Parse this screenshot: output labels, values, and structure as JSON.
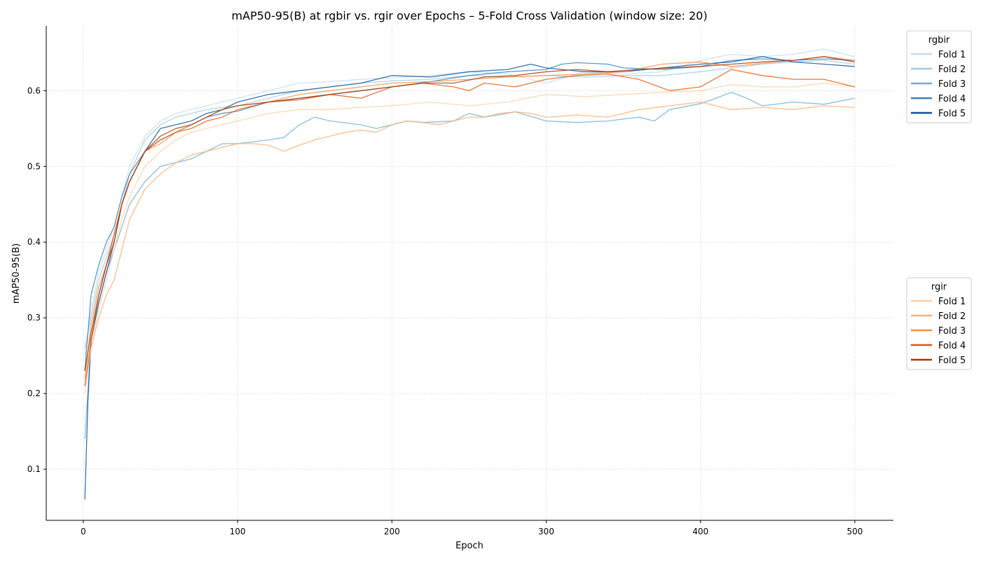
{
  "chart_data": {
    "type": "line",
    "title": "mAP50-95(B) at rgbir vs. rgir over Epochs – 5-Fold Cross Validation (window size: 20)",
    "xlabel": "Epoch",
    "ylabel": "mAP50-95(B)",
    "xlim": [
      -24,
      525
    ],
    "ylim": [
      0.0325,
      0.6855
    ],
    "xticks": [
      0,
      100,
      200,
      300,
      400,
      500
    ],
    "yticks": [
      0.1,
      0.2,
      0.3,
      0.4,
      0.5,
      0.6
    ],
    "xtick_labels": [
      "0",
      "100",
      "200",
      "300",
      "400",
      "500"
    ],
    "ytick_labels": [
      "0.1",
      "0.2",
      "0.3",
      "0.4",
      "0.5",
      "0.6"
    ],
    "grid": true,
    "legends": [
      {
        "title": "rgbir",
        "placement": "upper right, outside plot",
        "entries": [
          "Fold 1",
          "Fold 2",
          "Fold 3",
          "Fold 4",
          "Fold 5"
        ],
        "colors": [
          "#c6dbef",
          "#9ecae1",
          "#6baed6",
          "#3182bd",
          "#08519c"
        ]
      },
      {
        "title": "rgir",
        "placement": "center right, outside plot",
        "entries": [
          "Fold 1",
          "Fold 2",
          "Fold 3",
          "Fold 4",
          "Fold 5"
        ],
        "colors": [
          "#fdd0a2",
          "#fdae6b",
          "#fd8d3c",
          "#e6550d",
          "#a63603"
        ]
      }
    ],
    "series": [
      {
        "group": "rgbir",
        "name": "Fold 1",
        "color": "#c6dbef",
        "x": [
          1,
          5,
          10,
          15,
          20,
          25,
          30,
          40,
          50,
          60,
          70,
          80,
          90,
          100,
          120,
          140,
          160,
          180,
          200,
          225,
          250,
          275,
          300,
          325,
          350,
          375,
          400,
          420,
          440,
          460,
          480,
          500
        ],
        "y": [
          0.25,
          0.31,
          0.36,
          0.39,
          0.42,
          0.46,
          0.5,
          0.54,
          0.56,
          0.57,
          0.575,
          0.58,
          0.585,
          0.59,
          0.6,
          0.61,
          0.612,
          0.615,
          0.617,
          0.62,
          0.625,
          0.622,
          0.61,
          0.625,
          0.622,
          0.625,
          0.64,
          0.648,
          0.645,
          0.648,
          0.655,
          0.645
        ]
      },
      {
        "group": "rgbir",
        "name": "Fold 2",
        "color": "#9ecae1",
        "x": [
          1,
          5,
          10,
          15,
          20,
          25,
          30,
          40,
          50,
          60,
          70,
          80,
          90,
          100,
          120,
          140,
          160,
          180,
          200,
          225,
          250,
          275,
          300,
          325,
          350,
          375,
          400,
          420,
          440,
          460,
          480,
          500
        ],
        "y": [
          0.26,
          0.3,
          0.35,
          0.38,
          0.41,
          0.45,
          0.49,
          0.535,
          0.555,
          0.565,
          0.57,
          0.575,
          0.578,
          0.58,
          0.59,
          0.6,
          0.605,
          0.61,
          0.613,
          0.615,
          0.62,
          0.618,
          0.62,
          0.618,
          0.62,
          0.62,
          0.625,
          0.63,
          0.635,
          0.638,
          0.64,
          0.635
        ]
      },
      {
        "group": "rgbir",
        "name": "Fold 3",
        "color": "#6baed6",
        "x": [
          1,
          5,
          10,
          15,
          20,
          25,
          30,
          40,
          50,
          60,
          70,
          80,
          90,
          100,
          120,
          130,
          140,
          150,
          160,
          180,
          190,
          200,
          210,
          220,
          240,
          250,
          260,
          280,
          300,
          320,
          340,
          360,
          370,
          380,
          400,
          410,
          420,
          430,
          440,
          460,
          480,
          500
        ],
        "y": [
          0.14,
          0.27,
          0.32,
          0.36,
          0.39,
          0.42,
          0.45,
          0.48,
          0.5,
          0.505,
          0.51,
          0.52,
          0.53,
          0.53,
          0.535,
          0.538,
          0.555,
          0.565,
          0.56,
          0.555,
          0.55,
          0.555,
          0.56,
          0.558,
          0.56,
          0.57,
          0.565,
          0.572,
          0.56,
          0.558,
          0.56,
          0.565,
          0.56,
          0.575,
          0.583,
          0.59,
          0.598,
          0.59,
          0.58,
          0.585,
          0.582,
          0.59
        ]
      },
      {
        "group": "rgbir",
        "name": "Fold 4",
        "color": "#3182bd",
        "x": [
          1,
          5,
          10,
          15,
          20,
          25,
          30,
          40,
          50,
          60,
          70,
          80,
          90,
          100,
          120,
          140,
          160,
          180,
          200,
          225,
          250,
          275,
          300,
          310,
          320,
          340,
          350,
          375,
          400,
          420,
          440,
          460,
          480,
          500
        ],
        "y": [
          0.23,
          0.33,
          0.37,
          0.4,
          0.42,
          0.46,
          0.49,
          0.52,
          0.535,
          0.545,
          0.555,
          0.565,
          0.57,
          0.573,
          0.585,
          0.59,
          0.595,
          0.6,
          0.605,
          0.612,
          0.62,
          0.625,
          0.628,
          0.635,
          0.637,
          0.635,
          0.63,
          0.628,
          0.632,
          0.64,
          0.642,
          0.64,
          0.642,
          0.64
        ]
      },
      {
        "group": "rgbir",
        "name": "Fold 5",
        "color": "#08519c",
        "x": [
          1,
          3,
          5,
          10,
          15,
          20,
          25,
          30,
          40,
          50,
          60,
          70,
          80,
          90,
          100,
          120,
          140,
          160,
          180,
          200,
          225,
          250,
          275,
          290,
          300,
          325,
          350,
          375,
          400,
          420,
          440,
          460,
          480,
          500
        ],
        "y": [
          0.06,
          0.19,
          0.27,
          0.32,
          0.36,
          0.4,
          0.45,
          0.48,
          0.52,
          0.55,
          0.555,
          0.56,
          0.57,
          0.575,
          0.585,
          0.595,
          0.6,
          0.605,
          0.61,
          0.62,
          0.618,
          0.625,
          0.628,
          0.635,
          0.63,
          0.625,
          0.625,
          0.63,
          0.635,
          0.638,
          0.645,
          0.638,
          0.635,
          0.632
        ]
      },
      {
        "group": "rgir",
        "name": "Fold 1",
        "color": "#fdd0a2",
        "x": [
          1,
          5,
          10,
          15,
          20,
          25,
          30,
          40,
          50,
          60,
          70,
          80,
          90,
          100,
          120,
          140,
          160,
          180,
          200,
          225,
          250,
          275,
          300,
          325,
          350,
          375,
          400,
          420,
          440,
          460,
          480,
          500
        ],
        "y": [
          0.2,
          0.26,
          0.31,
          0.35,
          0.39,
          0.43,
          0.46,
          0.5,
          0.52,
          0.535,
          0.545,
          0.55,
          0.555,
          0.56,
          0.57,
          0.575,
          0.575,
          0.578,
          0.58,
          0.585,
          0.58,
          0.585,
          0.595,
          0.592,
          0.595,
          0.598,
          0.6,
          0.608,
          0.605,
          0.605,
          0.61,
          0.605
        ]
      },
      {
        "group": "rgir",
        "name": "Fold 2",
        "color": "#fdae6b",
        "x": [
          1,
          5,
          10,
          15,
          20,
          25,
          30,
          40,
          50,
          60,
          70,
          80,
          90,
          100,
          110,
          120,
          130,
          140,
          150,
          160,
          170,
          180,
          190,
          200,
          210,
          220,
          230,
          240,
          250,
          260,
          270,
          280,
          290,
          300,
          320,
          340,
          350,
          360,
          380,
          400,
          420,
          440,
          460,
          480,
          500
        ],
        "y": [
          0.21,
          0.26,
          0.3,
          0.33,
          0.35,
          0.39,
          0.43,
          0.47,
          0.49,
          0.505,
          0.515,
          0.52,
          0.525,
          0.53,
          0.53,
          0.528,
          0.52,
          0.528,
          0.535,
          0.54,
          0.545,
          0.548,
          0.545,
          0.555,
          0.56,
          0.558,
          0.555,
          0.56,
          0.565,
          0.565,
          0.57,
          0.572,
          0.57,
          0.565,
          0.568,
          0.565,
          0.57,
          0.575,
          0.58,
          0.585,
          0.575,
          0.578,
          0.575,
          0.58,
          0.578
        ]
      },
      {
        "group": "rgir",
        "name": "Fold 3",
        "color": "#fd8d3c",
        "x": [
          1,
          5,
          10,
          15,
          20,
          25,
          30,
          40,
          50,
          60,
          70,
          80,
          90,
          100,
          120,
          140,
          160,
          180,
          200,
          225,
          250,
          275,
          300,
          325,
          350,
          375,
          400,
          420,
          440,
          460,
          480,
          500
        ],
        "y": [
          0.22,
          0.29,
          0.34,
          0.37,
          0.41,
          0.45,
          0.48,
          0.52,
          0.53,
          0.545,
          0.555,
          0.565,
          0.575,
          0.58,
          0.585,
          0.595,
          0.6,
          0.605,
          0.61,
          0.612,
          0.615,
          0.618,
          0.62,
          0.622,
          0.625,
          0.635,
          0.638,
          0.632,
          0.636,
          0.64,
          0.645,
          0.64
        ]
      },
      {
        "group": "rgir",
        "name": "Fold 4",
        "color": "#e6550d",
        "x": [
          1,
          5,
          10,
          15,
          20,
          25,
          30,
          40,
          50,
          60,
          70,
          80,
          90,
          100,
          120,
          140,
          160,
          180,
          200,
          220,
          240,
          250,
          260,
          280,
          300,
          320,
          340,
          360,
          380,
          400,
          420,
          440,
          460,
          480,
          500
        ],
        "y": [
          0.21,
          0.27,
          0.33,
          0.37,
          0.41,
          0.45,
          0.48,
          0.52,
          0.535,
          0.545,
          0.55,
          0.56,
          0.565,
          0.575,
          0.585,
          0.588,
          0.595,
          0.59,
          0.605,
          0.61,
          0.605,
          0.6,
          0.61,
          0.605,
          0.615,
          0.62,
          0.622,
          0.615,
          0.6,
          0.605,
          0.628,
          0.62,
          0.615,
          0.615,
          0.605
        ]
      },
      {
        "group": "rgir",
        "name": "Fold 5",
        "color": "#a63603",
        "x": [
          1,
          5,
          10,
          15,
          20,
          25,
          30,
          40,
          50,
          60,
          70,
          80,
          90,
          100,
          120,
          140,
          160,
          180,
          200,
          220,
          240,
          260,
          280,
          300,
          320,
          340,
          360,
          380,
          400,
          420,
          440,
          460,
          480,
          500
        ],
        "y": [
          0.23,
          0.28,
          0.33,
          0.37,
          0.4,
          0.45,
          0.48,
          0.52,
          0.54,
          0.55,
          0.555,
          0.565,
          0.575,
          0.58,
          0.585,
          0.59,
          0.595,
          0.6,
          0.605,
          0.61,
          0.61,
          0.618,
          0.62,
          0.625,
          0.628,
          0.625,
          0.628,
          0.63,
          0.632,
          0.635,
          0.638,
          0.64,
          0.645,
          0.638
        ]
      }
    ]
  }
}
